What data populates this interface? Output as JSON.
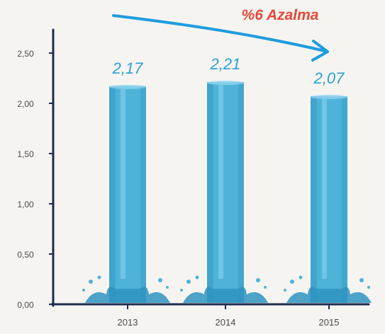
{
  "chart_data": {
    "type": "bar",
    "categories": [
      "2013",
      "2014",
      "2015"
    ],
    "values": [
      2.17,
      2.21,
      2.07
    ],
    "data_labels": [
      "2,17",
      "2,21",
      "2,07"
    ],
    "ylim": [
      0,
      2.5
    ],
    "y_ticks": [
      {
        "value": 0,
        "label": "0,00"
      },
      {
        "value": 0.5,
        "label": "0,50"
      },
      {
        "value": 1.0,
        "label": "1,00"
      },
      {
        "value": 1.5,
        "label": "1,50"
      },
      {
        "value": 2.0,
        "label": "2,00"
      },
      {
        "value": 2.5,
        "label": "2,50"
      }
    ],
    "annotation": "%6 Azalma",
    "grid": false,
    "colors": {
      "bar": "#4fb3d9",
      "bar_dark": "#2e93bf",
      "bar_light": "#8ed3ee",
      "label": "#2a9fd6",
      "annotation": "#e8483b",
      "arrow": "#1e9ce0",
      "axis": "#1d2b4f",
      "tick_text": "#4a4a4a",
      "background": "#f6f4f1"
    }
  }
}
